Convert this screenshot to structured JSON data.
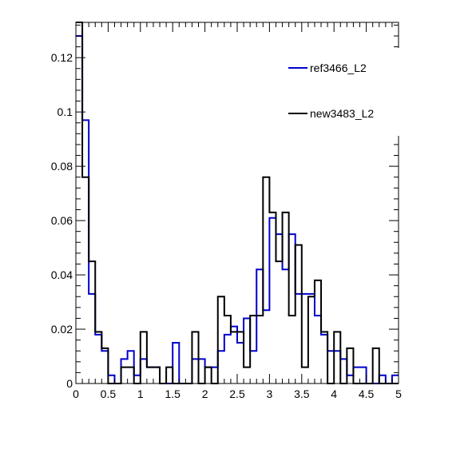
{
  "chart_data": {
    "type": "histogram",
    "title": "",
    "xlabel": "",
    "ylabel": "",
    "xlim": [
      0,
      5
    ],
    "ylim": [
      0,
      0.133
    ],
    "bin_width": 0.1,
    "x_ticks": [
      0,
      0.5,
      1,
      1.5,
      2,
      2.5,
      3,
      3.5,
      4,
      4.5,
      5
    ],
    "x_tick_labels": [
      "0",
      "0.5",
      "1",
      "1.5",
      "2",
      "2.5",
      "3",
      "3.5",
      "4",
      "4.5",
      "5"
    ],
    "y_ticks": [
      0,
      0.02,
      0.04,
      0.06,
      0.08,
      0.1,
      0.12
    ],
    "y_tick_labels": [
      "0",
      "0.02",
      "0.04",
      "0.06",
      "0.08",
      "0.1",
      "0.12"
    ],
    "grid": false,
    "legend_position": "top-right",
    "series": [
      {
        "name": "ref3466_L2",
        "color": "#0000cc",
        "values": [
          0.128,
          0.097,
          0.033,
          0.018,
          0.012,
          0.003,
          0.0,
          0.009,
          0.012,
          0.003,
          0.009,
          0.006,
          0.006,
          0.0,
          0.0,
          0.015,
          0.0,
          0.0,
          0.009,
          0.009,
          0.006,
          0.006,
          0.012,
          0.018,
          0.021,
          0.015,
          0.024,
          0.012,
          0.042,
          0.027,
          0.061,
          0.055,
          0.042,
          0.055,
          0.033,
          0.033,
          0.033,
          0.025,
          0.018,
          0.012,
          0.012,
          0.009,
          0.003,
          0.006,
          0.006,
          0.0,
          0.0,
          0.003,
          0.0,
          0.003
        ]
      },
      {
        "name": "new3483_L2",
        "color": "#000000",
        "values": [
          0.133,
          0.076,
          0.045,
          0.019,
          0.013,
          0.0,
          0.0,
          0.006,
          0.006,
          0.0,
          0.019,
          0.006,
          0.006,
          0.0,
          0.006,
          0.0,
          0.0,
          0.0,
          0.019,
          0.0,
          0.006,
          0.0,
          0.032,
          0.025,
          0.019,
          0.019,
          0.006,
          0.025,
          0.025,
          0.076,
          0.063,
          0.045,
          0.063,
          0.025,
          0.051,
          0.006,
          0.032,
          0.038,
          0.019,
          0.0,
          0.019,
          0.0,
          0.013,
          0.0,
          0.0,
          0.0,
          0.013,
          0.0,
          0.0,
          0.0
        ]
      }
    ]
  }
}
